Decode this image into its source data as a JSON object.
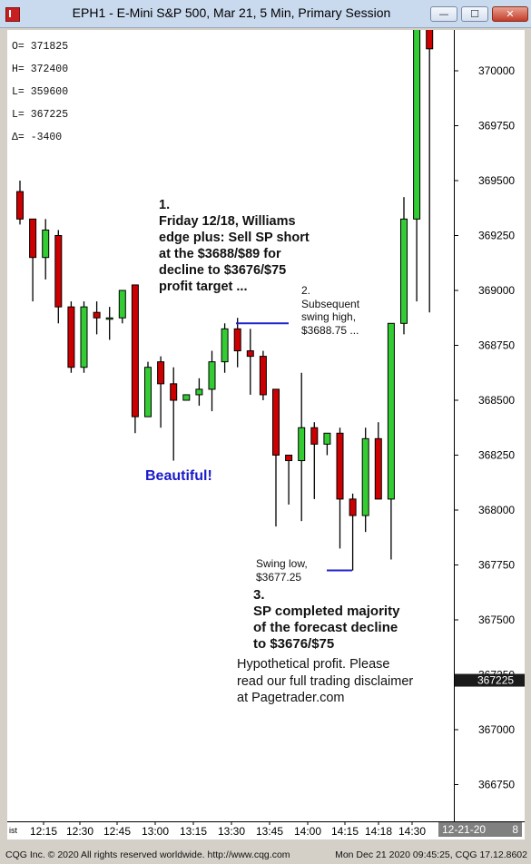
{
  "window": {
    "title": "EPH1 - E-Mini S&P 500, Mar 21, 5 Min, Primary Session"
  },
  "ohlc_box": {
    "lines": [
      "O=  371825",
      "H=  372400",
      "L=  359600",
      "L=  367225",
      "Δ=    -3400"
    ]
  },
  "annotations": {
    "a1": "1.\nFriday 12/18, Williams\nedge plus: Sell SP short\nat the $3688/$89 for\ndecline to $3676/$75\nprofit target ...",
    "a2": "2.\nSubsequent\nswing high,\n$3688.75 ...",
    "beautiful": "Beautiful!",
    "swing_low": "Swing low,\n$3677.25",
    "a3": "3.\nSP completed majority\nof the forecast decline\nto $3676/$75",
    "disclaimer": "Hypothetical profit. Please\nread our full trading disclaimer\nat Pagetrader.com"
  },
  "last_price": "367225",
  "date_box": "12-21-20",
  "date_box_suffix": "8",
  "x_axis_left_marker": "ist",
  "footer": {
    "left": "CQG Inc. © 2020 All rights reserved worldwide. http://www.cqg.com",
    "right": "Mon Dec 21 2020 09:45:25, CQG 17.12.8602"
  },
  "colors": {
    "up": "#33cc33",
    "down": "#cc0000",
    "line": "#2222cc",
    "beautiful": "#1a1acc",
    "price_tag": "#1a1a1a"
  },
  "chart_data": {
    "type": "candlestick",
    "title": "EPH1 - E-Mini S&P 500, Mar 21, 5 Min, Primary Session",
    "ylim": [
      366600,
      370250
    ],
    "y_ticks": [
      370000,
      369750,
      369500,
      369250,
      369000,
      368750,
      368500,
      368250,
      368000,
      367750,
      367500,
      367250,
      367000,
      366750
    ],
    "x_labels": [
      "12:15",
      "12:30",
      "12:45",
      "13:00",
      "13:15",
      "13:30",
      "13:45",
      "14:00",
      "14:15",
      "14:18",
      "14:30"
    ],
    "candles": [
      {
        "o": 369450,
        "h": 369500,
        "l": 369300,
        "c": 369325
      },
      {
        "o": 369325,
        "h": 369325,
        "l": 368950,
        "c": 369150
      },
      {
        "o": 369150,
        "h": 369325,
        "l": 369050,
        "c": 369275
      },
      {
        "o": 369250,
        "h": 369275,
        "l": 368850,
        "c": 368925
      },
      {
        "o": 368925,
        "h": 368950,
        "l": 368625,
        "c": 368650
      },
      {
        "o": 368650,
        "h": 368950,
        "l": 368625,
        "c": 368925
      },
      {
        "o": 368900,
        "h": 368950,
        "l": 368800,
        "c": 368875
      },
      {
        "o": 368875,
        "h": 368925,
        "l": 368775,
        "c": 368875
      },
      {
        "o": 368875,
        "h": 369000,
        "l": 368850,
        "c": 369000
      },
      {
        "o": 369025,
        "h": 369025,
        "l": 368350,
        "c": 368425
      },
      {
        "o": 368425,
        "h": 368675,
        "l": 368425,
        "c": 368650
      },
      {
        "o": 368675,
        "h": 368700,
        "l": 368375,
        "c": 368575
      },
      {
        "o": 368575,
        "h": 368650,
        "l": 368225,
        "c": 368500
      },
      {
        "o": 368500,
        "h": 368525,
        "l": 368500,
        "c": 368525
      },
      {
        "o": 368525,
        "h": 368600,
        "l": 368475,
        "c": 368550
      },
      {
        "o": 368550,
        "h": 368725,
        "l": 368450,
        "c": 368675
      },
      {
        "o": 368675,
        "h": 368850,
        "l": 368625,
        "c": 368825
      },
      {
        "o": 368825,
        "h": 368875,
        "l": 368650,
        "c": 368725
      },
      {
        "o": 368725,
        "h": 368825,
        "l": 368525,
        "c": 368700
      },
      {
        "o": 368700,
        "h": 368725,
        "l": 368500,
        "c": 368525
      },
      {
        "o": 368550,
        "h": 368550,
        "l": 367925,
        "c": 368250
      },
      {
        "o": 368250,
        "h": 368250,
        "l": 368025,
        "c": 368225
      },
      {
        "o": 368225,
        "h": 368625,
        "l": 367950,
        "c": 368375
      },
      {
        "o": 368375,
        "h": 368400,
        "l": 368050,
        "c": 368300
      },
      {
        "o": 368300,
        "h": 368350,
        "l": 368250,
        "c": 368350
      },
      {
        "o": 368350,
        "h": 368375,
        "l": 367825,
        "c": 368050
      },
      {
        "o": 368050,
        "h": 368075,
        "l": 367725,
        "c": 367975
      },
      {
        "o": 367975,
        "h": 368375,
        "l": 367900,
        "c": 368325
      },
      {
        "o": 368325,
        "h": 368400,
        "l": 368050,
        "c": 368050
      },
      {
        "o": 368050,
        "h": 368850,
        "l": 367775,
        "c": 368850
      },
      {
        "o": 368850,
        "h": 369425,
        "l": 368800,
        "c": 369325
      },
      {
        "o": 369325,
        "h": 370250,
        "l": 368950,
        "c": 370250
      },
      {
        "o": 370250,
        "h": 370250,
        "l": 368900,
        "c": 370100
      }
    ]
  }
}
